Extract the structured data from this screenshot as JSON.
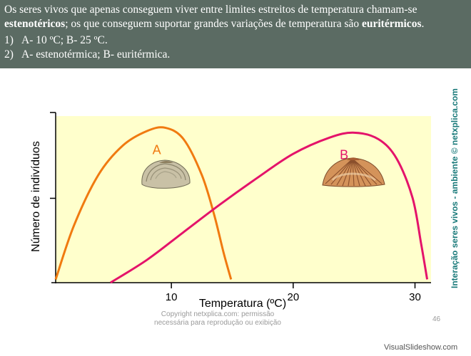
{
  "header": {
    "line1_a": "Os seres vivos que apenas conseguem viver entre limites estreitos de temperatura chamam-se ",
    "term1": "estenotéricos",
    "line1_b": "; os que conseguem suportar grandes variações de temperatura são ",
    "term2": "euritérmicos",
    "line1_c": ".",
    "options": [
      {
        "num": "1)",
        "text": "A- 10 ºC; B- 25 ºC."
      },
      {
        "num": "2)",
        "text": "A- estenotérmica; B- euritérmica."
      }
    ]
  },
  "chart_data": {
    "type": "line",
    "xlabel": "Temperatura (ºC)",
    "ylabel": "Número de indivíduos",
    "xlim": [
      0.5,
      31.2
    ],
    "ylim": [
      0,
      100
    ],
    "xticks": [
      10,
      20,
      30
    ],
    "grid": false,
    "background": "#ffffcc",
    "series": [
      {
        "name": "A",
        "color": "#f07a10",
        "x": [
          0.5,
          2,
          4,
          6,
          8,
          9.5,
          11,
          12.5,
          13.5,
          14.3,
          14.9
        ],
        "y": [
          2,
          35,
          66,
          84,
          93,
          95,
          88,
          66,
          42,
          18,
          2
        ]
      },
      {
        "name": "B",
        "color": "#e4136a",
        "x": [
          5,
          8,
          11,
          14,
          17,
          20,
          23,
          25,
          27,
          28.5,
          29.8,
          30.5,
          31
        ],
        "y": [
          0,
          14,
          31,
          48,
          64,
          79,
          89,
          92,
          88,
          76,
          52,
          24,
          2
        ]
      }
    ]
  },
  "sidebar_text": "Interação seres vivos - ambiente © netxplica.com",
  "copyright_text": "Copyright netxplica.com: permissão necessária para reprodução ou exibição",
  "page_number": "46",
  "watermark": "VisualSlideshow.com"
}
